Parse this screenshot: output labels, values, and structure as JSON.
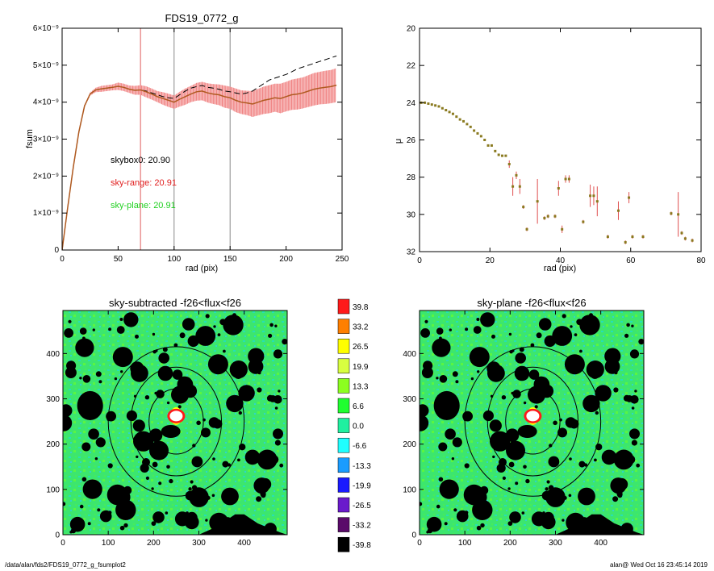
{
  "footer": {
    "path": "/data/alan/fds2/FDS19_0772_g_fsumplot2",
    "stamp": "alan@  Wed Oct 16 23:45:14 2019"
  },
  "chart_data": [
    {
      "id": "fsum",
      "type": "line",
      "title": "FDS19_0772_g",
      "xlabel": "rad (pix)",
      "ylabel": "fsum",
      "xlim": [
        0,
        250
      ],
      "ylim": [
        0,
        6e-09
      ],
      "xticks": [
        "0",
        "50",
        "100",
        "150",
        "200",
        "250"
      ],
      "yticks": [
        {
          "v": 0,
          "t": "0"
        },
        {
          "v": 1e-09,
          "t": "1×10⁻⁹"
        },
        {
          "v": 2e-09,
          "t": "2×10⁻⁹"
        },
        {
          "v": 3e-09,
          "t": "3×10⁻⁹"
        },
        {
          "v": 4e-09,
          "t": "4×10⁻⁹"
        },
        {
          "v": 5e-09,
          "t": "5×10⁻⁹"
        },
        {
          "v": 6e-09,
          "t": "6×10⁻⁹"
        }
      ],
      "vlines": [
        {
          "x": 70,
          "color": "#e06060"
        },
        {
          "x": 100,
          "color": "#888888"
        },
        {
          "x": 150,
          "color": "#888888"
        }
      ],
      "annotations": [
        {
          "text": "skybox0: 20.90",
          "color": "#000000"
        },
        {
          "text": "sky-range: 20.91",
          "color": "#e02020"
        },
        {
          "text": "sky-plane: 20.91",
          "color": "#20d020"
        }
      ],
      "curve_x": [
        0,
        5,
        10,
        15,
        20,
        25,
        30,
        35,
        40,
        45,
        50,
        55,
        60,
        65,
        70,
        75,
        80,
        85,
        90,
        95,
        100,
        105,
        110,
        115,
        120,
        125,
        130,
        135,
        140,
        145,
        150,
        155,
        160,
        165,
        170,
        175,
        180,
        185,
        190,
        195,
        200,
        205,
        210,
        215,
        220,
        225,
        230,
        235,
        240,
        245
      ],
      "curve_y": [
        0,
        1.15e-09,
        2.25e-09,
        3.2e-09,
        3.9e-09,
        4.22e-09,
        4.33e-09,
        4.36e-09,
        4.38e-09,
        4.4e-09,
        4.43e-09,
        4.4e-09,
        4.35e-09,
        4.32e-09,
        4.33e-09,
        4.28e-09,
        4.22e-09,
        4.15e-09,
        4.1e-09,
        4.05e-09,
        4e-09,
        4.08e-09,
        4.15e-09,
        4.22e-09,
        4.28e-09,
        4.3e-09,
        4.25e-09,
        4.22e-09,
        4.2e-09,
        4.15e-09,
        4.12e-09,
        4.05e-09,
        4e-09,
        3.98e-09,
        3.95e-09,
        4e-09,
        4.05e-09,
        4.08e-09,
        4.12e-09,
        4.1e-09,
        4.15e-09,
        4.2e-09,
        4.22e-09,
        4.25e-09,
        4.3e-09,
        4.35e-09,
        4.38e-09,
        4.4e-09,
        4.42e-09,
        4.46e-09
      ],
      "dashed_y": [
        0,
        1.15e-09,
        2.25e-09,
        3.2e-09,
        3.9e-09,
        4.22e-09,
        4.33e-09,
        4.36e-09,
        4.38e-09,
        4.4e-09,
        4.43e-09,
        4.4e-09,
        4.35e-09,
        4.32e-09,
        4.33e-09,
        4.3e-09,
        4.25e-09,
        4.2e-09,
        4.15e-09,
        4.12e-09,
        4.1e-09,
        4.2e-09,
        4.3e-09,
        4.38e-09,
        4.42e-09,
        4.45e-09,
        4.4e-09,
        4.38e-09,
        4.35e-09,
        4.3e-09,
        4.28e-09,
        4.25e-09,
        4.22e-09,
        4.25e-09,
        4.3e-09,
        4.4e-09,
        4.5e-09,
        4.6e-09,
        4.65e-09,
        4.7e-09,
        4.75e-09,
        4.82e-09,
        4.9e-09,
        4.95e-09,
        5e-09,
        5.05e-09,
        5.1e-09,
        5.15e-09,
        5.2e-09,
        5.25e-09
      ],
      "err": [
        0,
        0,
        0,
        0,
        2e-11,
        4e-11,
        6e-11,
        8e-11,
        8e-11,
        8e-11,
        1e-10,
        1e-10,
        1e-10,
        1.2e-10,
        1.3e-10,
        1.5e-10,
        1.5e-10,
        1.5e-10,
        1.7e-10,
        1.8e-10,
        1.8e-10,
        2e-10,
        2.2e-10,
        2.2e-10,
        2.4e-10,
        2.5e-10,
        2.6e-10,
        2.7e-10,
        2.8e-10,
        3e-10,
        3e-10,
        3.2e-10,
        3.2e-10,
        3.3e-10,
        3.5e-10,
        3.6e-10,
        3.7e-10,
        3.8e-10,
        3.8e-10,
        4e-10,
        4e-10,
        4.1e-10,
        4.2e-10,
        4.2e-10,
        4.3e-10,
        4.4e-10,
        4.4e-10,
        4.5e-10,
        4.5e-10,
        4.6e-10
      ]
    },
    {
      "id": "mu",
      "type": "scatter",
      "xlabel": "rad (pix)",
      "ylabel": "μ",
      "xlim": [
        0,
        80
      ],
      "ylim": [
        20,
        32
      ],
      "y_inverted": true,
      "xticks": [
        "0",
        "20",
        "40",
        "60",
        "80"
      ],
      "yticks": [
        "20",
        "22",
        "24",
        "26",
        "28",
        "30",
        "32"
      ],
      "points": [
        {
          "x": 0.5,
          "y": 24.0
        },
        {
          "x": 1.5,
          "y": 24.0
        },
        {
          "x": 2.5,
          "y": 24.05
        },
        {
          "x": 3.5,
          "y": 24.1
        },
        {
          "x": 4.5,
          "y": 24.15
        },
        {
          "x": 5.5,
          "y": 24.2
        },
        {
          "x": 6.5,
          "y": 24.3
        },
        {
          "x": 7.5,
          "y": 24.4
        },
        {
          "x": 8.5,
          "y": 24.5
        },
        {
          "x": 9.5,
          "y": 24.6
        },
        {
          "x": 10.5,
          "y": 24.75
        },
        {
          "x": 11.5,
          "y": 24.9
        },
        {
          "x": 12.5,
          "y": 25.0
        },
        {
          "x": 13.5,
          "y": 25.15
        },
        {
          "x": 14.5,
          "y": 25.3
        },
        {
          "x": 15.5,
          "y": 25.5
        },
        {
          "x": 16.5,
          "y": 25.65
        },
        {
          "x": 17.5,
          "y": 25.8
        },
        {
          "x": 18.5,
          "y": 26.0
        },
        {
          "x": 19.5,
          "y": 26.3
        },
        {
          "x": 20.5,
          "y": 26.3
        },
        {
          "x": 21.5,
          "y": 26.6
        },
        {
          "x": 22.5,
          "y": 26.8
        },
        {
          "x": 23.5,
          "y": 26.85
        },
        {
          "x": 24.5,
          "y": 26.85
        },
        {
          "x": 25.5,
          "y": 27.3,
          "e": 0.2
        },
        {
          "x": 26.5,
          "y": 28.5,
          "e": 0.5
        },
        {
          "x": 27.5,
          "y": 27.9,
          "e": 0.2
        },
        {
          "x": 28.5,
          "y": 28.5,
          "e": 0.4
        },
        {
          "x": 29.5,
          "y": 29.6,
          "e": 0.1
        },
        {
          "x": 30.5,
          "y": 30.8,
          "e": 0.1
        },
        {
          "x": 33.5,
          "y": 29.3,
          "e": 1.2
        },
        {
          "x": 35.5,
          "y": 30.2,
          "e": 0.1
        },
        {
          "x": 36.5,
          "y": 30.1,
          "e": 0.1
        },
        {
          "x": 38.5,
          "y": 30.1,
          "e": 0.1
        },
        {
          "x": 39.5,
          "y": 28.6,
          "e": 0.4
        },
        {
          "x": 40.5,
          "y": 30.8,
          "e": 0.2
        },
        {
          "x": 41.5,
          "y": 28.1,
          "e": 0.2
        },
        {
          "x": 42.5,
          "y": 28.1,
          "e": 0.2
        },
        {
          "x": 46.5,
          "y": 30.4,
          "e": 0.1
        },
        {
          "x": 48.5,
          "y": 29.0,
          "e": 0.6
        },
        {
          "x": 49.5,
          "y": 29.0,
          "e": 0.5
        },
        {
          "x": 50.5,
          "y": 29.3,
          "e": 0.8
        },
        {
          "x": 53.5,
          "y": 31.2,
          "e": 0.1
        },
        {
          "x": 56.5,
          "y": 29.8,
          "e": 0.5
        },
        {
          "x": 58.5,
          "y": 31.5,
          "e": 0.1
        },
        {
          "x": 59.5,
          "y": 29.1,
          "e": 0.3
        },
        {
          "x": 60.5,
          "y": 31.2,
          "e": 0.1
        },
        {
          "x": 63.5,
          "y": 31.2,
          "e": 0.1
        },
        {
          "x": 71.5,
          "y": 29.95,
          "e": 0.1
        },
        {
          "x": 73.5,
          "y": 30.0,
          "e": 1.2
        },
        {
          "x": 74.5,
          "y": 31.0,
          "e": 0.1
        },
        {
          "x": 75.5,
          "y": 31.3,
          "e": 0.1
        },
        {
          "x": 77.5,
          "y": 31.4,
          "e": 0.1
        }
      ]
    },
    {
      "id": "img-sub",
      "type": "heatmap",
      "title": "sky-subtracted -f26<flux<f26",
      "xlim": [
        0,
        495
      ],
      "ylim": [
        0,
        495
      ],
      "xticks": [
        "0",
        "100",
        "200",
        "300",
        "400"
      ],
      "yticks": [
        "0",
        "100",
        "200",
        "300",
        "400"
      ],
      "center": [
        250,
        250
      ],
      "ellipses": [
        {
          "rx": 60,
          "ry": 72
        },
        {
          "rx": 100,
          "ry": 120
        },
        {
          "rx": 150,
          "ry": 165
        }
      ]
    },
    {
      "id": "img-plane",
      "type": "heatmap",
      "title": "sky-plane -f26<flux<f26",
      "xlim": [
        0,
        495
      ],
      "ylim": [
        0,
        495
      ],
      "xticks": [
        "0",
        "100",
        "200",
        "300",
        "400"
      ],
      "yticks": [
        "0",
        "100",
        "200",
        "300",
        "400"
      ],
      "center": [
        250,
        250
      ],
      "ellipses": [
        {
          "rx": 60,
          "ry": 72
        },
        {
          "rx": 100,
          "ry": 120
        },
        {
          "rx": 150,
          "ry": 165
        }
      ]
    },
    {
      "id": "colorbar",
      "type": "table",
      "levels": [
        {
          "label": "39.8",
          "color": "#ff1a1a"
        },
        {
          "label": "33.2",
          "color": "#ff7f00"
        },
        {
          "label": "26.5",
          "color": "#ffff00"
        },
        {
          "label": "19.9",
          "color": "#d8ff40"
        },
        {
          "label": "13.3",
          "color": "#8cff20"
        },
        {
          "label": "6.6",
          "color": "#20ff30"
        },
        {
          "label": "0.0",
          "color": "#20f0a0"
        },
        {
          "label": "-6.6",
          "color": "#20ffff"
        },
        {
          "label": "-13.3",
          "color": "#1a9cff"
        },
        {
          "label": "-19.9",
          "color": "#1a1aff"
        },
        {
          "label": "-26.5",
          "color": "#6a1acc"
        },
        {
          "label": "-33.2",
          "color": "#5a0a6a"
        },
        {
          "label": "-39.8",
          "color": "#000000"
        }
      ]
    }
  ]
}
